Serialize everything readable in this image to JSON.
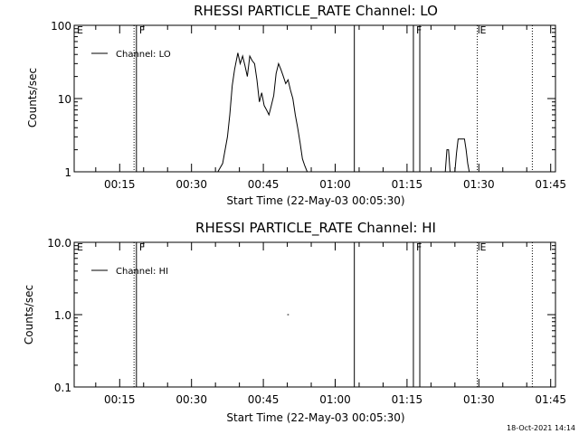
{
  "timestamp": "18-Oct-2021 14:14",
  "chart_data": [
    {
      "type": "line",
      "title": "RHESSI PARTICLE_RATE Channel: LO",
      "xlabel": "Start Time (22-May-03 00:05:30)",
      "ylabel": "Counts/sec",
      "yscale": "log",
      "xlim": [
        "00:05:30",
        "01:46:00"
      ],
      "ylim": [
        1,
        100
      ],
      "x_ticks": [
        "00:15",
        "00:30",
        "00:45",
        "01:00",
        "01:15",
        "01:30",
        "01:45"
      ],
      "y_ticks": [
        {
          "label": "1",
          "value": 1
        },
        {
          "label": "10",
          "value": 10
        },
        {
          "label": "100",
          "value": 100
        }
      ],
      "legend_position": "top-left",
      "series": [
        {
          "name": "Channel: LO",
          "segments": [
            [
              [
                "00:35:30",
                1
              ],
              [
                "00:36:30",
                1.3
              ],
              [
                "00:37:30",
                3
              ],
              [
                "00:38:00",
                6
              ],
              [
                "00:38:30",
                15
              ],
              [
                "00:39:00",
                25
              ],
              [
                "00:39:40",
                42
              ],
              [
                "00:40:10",
                30
              ],
              [
                "00:40:40",
                38
              ],
              [
                "00:41:10",
                28
              ],
              [
                "00:41:40",
                20
              ],
              [
                "00:42:10",
                38
              ],
              [
                "00:42:40",
                33
              ],
              [
                "00:43:10",
                30
              ],
              [
                "00:43:40",
                18
              ],
              [
                "00:44:10",
                9
              ],
              [
                "00:44:40",
                12
              ],
              [
                "00:45:10",
                8
              ],
              [
                "00:45:40",
                7
              ],
              [
                "00:46:10",
                6
              ],
              [
                "00:46:40",
                8
              ],
              [
                "00:47:10",
                11
              ],
              [
                "00:47:40",
                22
              ],
              [
                "00:48:10",
                30
              ],
              [
                "00:48:40",
                25
              ],
              [
                "00:49:10",
                20
              ],
              [
                "00:49:40",
                16
              ],
              [
                "00:50:10",
                18
              ],
              [
                "00:50:40",
                13
              ],
              [
                "00:51:10",
                10
              ],
              [
                "00:51:40",
                6
              ],
              [
                "00:52:10",
                4
              ],
              [
                "00:52:40",
                2.5
              ],
              [
                "00:53:10",
                1.5
              ],
              [
                "00:53:40",
                1.2
              ],
              [
                "00:54:10",
                1
              ]
            ],
            [
              [
                "01:23:00",
                1
              ],
              [
                "01:23:20",
                2
              ],
              [
                "01:23:40",
                2
              ],
              [
                "01:24:00",
                1
              ]
            ],
            [
              [
                "01:25:00",
                1
              ],
              [
                "01:25:20",
                1.8
              ],
              [
                "01:25:40",
                2.8
              ],
              [
                "01:27:00",
                2.8
              ],
              [
                "01:27:20",
                2
              ],
              [
                "01:27:40",
                1.3
              ],
              [
                "01:28:00",
                1
              ]
            ]
          ]
        }
      ],
      "markers": [
        {
          "time": "00:05:30",
          "style": "dotted",
          "label": "E"
        },
        {
          "time": "00:18:00",
          "style": "dotted",
          "label": ""
        },
        {
          "time": "00:18:30",
          "style": "solid",
          "label": "F"
        },
        {
          "time": "01:04:00",
          "style": "solid",
          "label": ""
        },
        {
          "time": "01:16:20",
          "style": "solid",
          "label": "F"
        },
        {
          "time": "01:17:40",
          "style": "solid",
          "label": ""
        },
        {
          "time": "01:29:40",
          "style": "dotted",
          "label": "E"
        },
        {
          "time": "01:41:10",
          "style": "dotted",
          "label": ""
        }
      ]
    },
    {
      "type": "line",
      "title": "RHESSI PARTICLE_RATE Channel: HI",
      "xlabel": "Start Time (22-May-03 00:05:30)",
      "ylabel": "Counts/sec",
      "yscale": "log",
      "xlim": [
        "00:05:30",
        "01:46:00"
      ],
      "ylim": [
        0.1,
        10
      ],
      "x_ticks": [
        "00:15",
        "00:30",
        "00:45",
        "01:00",
        "01:15",
        "01:30",
        "01:45"
      ],
      "y_ticks": [
        {
          "label": "0.1",
          "value": 0.1
        },
        {
          "label": "1.0",
          "value": 1
        },
        {
          "label": "10.0",
          "value": 10
        }
      ],
      "legend_position": "top-left",
      "series": [
        {
          "name": "Channel: HI",
          "segments": [
            [
              [
                "00:50:00",
                1
              ],
              [
                "00:50:20",
                1
              ]
            ]
          ]
        }
      ],
      "markers": [
        {
          "time": "00:05:30",
          "style": "dotted",
          "label": "E"
        },
        {
          "time": "00:18:00",
          "style": "dotted",
          "label": ""
        },
        {
          "time": "00:18:30",
          "style": "solid",
          "label": "F"
        },
        {
          "time": "01:04:00",
          "style": "solid",
          "label": ""
        },
        {
          "time": "01:16:20",
          "style": "solid",
          "label": "F"
        },
        {
          "time": "01:17:40",
          "style": "solid",
          "label": ""
        },
        {
          "time": "01:29:40",
          "style": "dotted",
          "label": "E"
        },
        {
          "time": "01:41:10",
          "style": "dotted",
          "label": ""
        }
      ]
    }
  ]
}
